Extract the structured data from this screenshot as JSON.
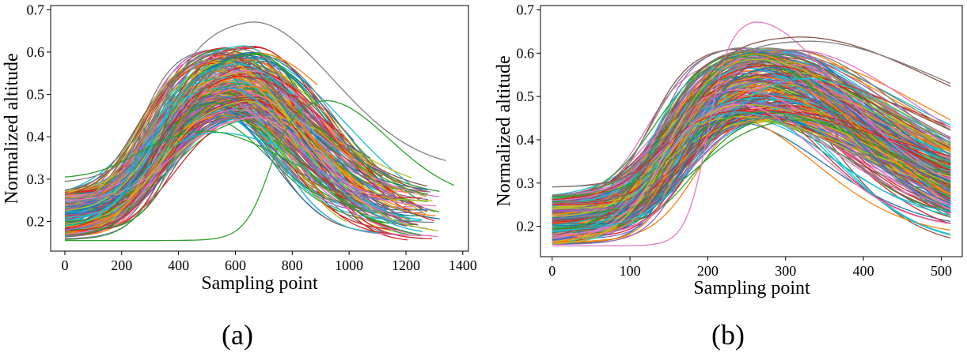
{
  "palette": [
    "#1f77b4",
    "#ff7f0e",
    "#2ca02c",
    "#d62728",
    "#9467bd",
    "#8c564b",
    "#e377c2",
    "#7f7f7f",
    "#bcbd22",
    "#17becf"
  ],
  "chart_data": [
    {
      "type": "line",
      "panel_label": "(a)",
      "xlabel": "Sampling point",
      "ylabel": "Normalized altitude",
      "xlim": [
        -50,
        1420
      ],
      "ylim": [
        0.13,
        0.71
      ],
      "xticks": [
        0,
        200,
        400,
        600,
        800,
        1000,
        1200,
        1400
      ],
      "yticks": [
        0.2,
        0.3,
        0.4,
        0.5,
        0.6,
        0.7
      ],
      "curve_count_note_hidden": true,
      "highlighted_series": [
        {
          "color": "#7f7f7f",
          "start": 0.29,
          "peak": 0.68,
          "peak_x": 640,
          "end": 0.32,
          "length": 1340
        },
        {
          "color": "#2ca02c",
          "start": 0.155,
          "peak": 0.49,
          "peak_x": 900,
          "end": 0.25,
          "length": 1370,
          "delayed": true
        },
        {
          "color": "#17becf",
          "start": 0.18,
          "peak": 0.42,
          "peak_x": 470,
          "end": 0.3,
          "length": 760
        },
        {
          "color": "#2ca02c",
          "start": 0.3,
          "peak": 0.42,
          "peak_x": 460,
          "end": 0.25,
          "length": 830
        }
      ]
    },
    {
      "type": "line",
      "panel_label": "(b)",
      "xlabel": "Sampling point",
      "ylabel": "Normalized altitude",
      "xlim": [
        -15,
        527
      ],
      "ylim": [
        0.13,
        0.71
      ],
      "xticks": [
        0,
        100,
        200,
        300,
        400,
        500
      ],
      "yticks": [
        0.2,
        0.3,
        0.4,
        0.5,
        0.6,
        0.7
      ],
      "highlighted_series": [
        {
          "color": "#e377c2",
          "start": 0.155,
          "peak": 0.68,
          "peak_x": 250,
          "end": 0.27,
          "length": 512,
          "delayed": true
        },
        {
          "color": "#8c564b",
          "start": 0.29,
          "peak": 0.64,
          "peak_x": 310,
          "end": 0.39,
          "length": 512
        },
        {
          "color": "#7f7f7f",
          "start": 0.29,
          "peak": 0.63,
          "peak_x": 320,
          "end": 0.4,
          "length": 512
        }
      ]
    }
  ]
}
